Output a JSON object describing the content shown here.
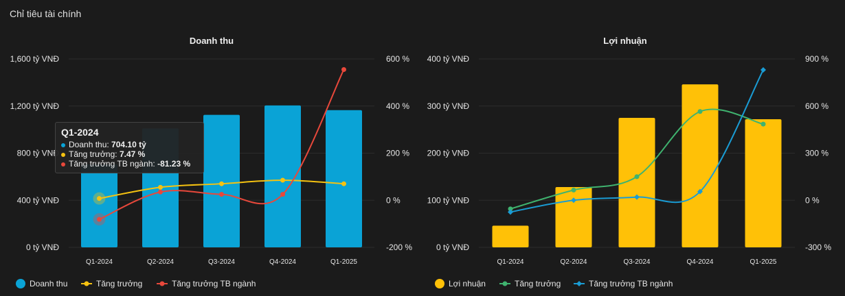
{
  "page_title": "Chỉ tiêu tài chính",
  "colors": {
    "revenue_bar": "#0aa3d6",
    "profit_bar": "#ffc107",
    "growth_revenue": "#f5c211",
    "industry_revenue": "#e8483b",
    "growth_profit": "#3fb36f",
    "industry_profit": "#1a9cd4"
  },
  "tooltip": {
    "title": "Q1-2024",
    "rows": [
      {
        "label": "Doanh thu: ",
        "value": "704.10 tỷ"
      },
      {
        "label": "Tăng trưởng: ",
        "value": "7.47 %"
      },
      {
        "label": "Tăng trưởng TB ngành: ",
        "value": "-81.23 %"
      }
    ]
  },
  "chart_data": [
    {
      "type": "bar",
      "title": "Doanh thu",
      "categories": [
        "Q1-2024",
        "Q2-2024",
        "Q3-2024",
        "Q4-2024",
        "Q1-2025"
      ],
      "y_left": {
        "ticks": [
          "0 tỷ VNĐ",
          "400 tỷ VNĐ",
          "800 tỷ VNĐ",
          "1,200 tỷ VNĐ",
          "1,600 tỷ VNĐ"
        ],
        "range": [
          0,
          1600
        ]
      },
      "y_right": {
        "ticks": [
          "-200 %",
          "0 %",
          "200 %",
          "400 %",
          "600 %"
        ],
        "range": [
          -200,
          600
        ]
      },
      "series": [
        {
          "name": "Doanh thu",
          "kind": "bar",
          "axis": "left",
          "values": [
            704.1,
            1010,
            1125,
            1205,
            1165
          ]
        },
        {
          "name": "Tăng trưởng",
          "kind": "line",
          "axis": "right",
          "values": [
            7.47,
            55,
            70,
            85,
            70
          ]
        },
        {
          "name": "Tăng trưởng TB ngành",
          "kind": "line",
          "axis": "right",
          "values": [
            -81.23,
            35,
            25,
            25,
            555
          ]
        }
      ]
    },
    {
      "type": "bar",
      "title": "Lợi nhuận",
      "categories": [
        "Q1-2024",
        "Q2-2024",
        "Q3-2024",
        "Q4-2024",
        "Q1-2025"
      ],
      "y_left": {
        "ticks": [
          "0 tỷ VNĐ",
          "100 tỷ VNĐ",
          "200 tỷ VNĐ",
          "300 tỷ VNĐ",
          "400 tỷ VNĐ"
        ],
        "range": [
          0,
          400
        ]
      },
      "y_right": {
        "ticks": [
          "-300 %",
          "0 %",
          "300 %",
          "600 %",
          "900 %"
        ],
        "range": [
          -300,
          900
        ]
      },
      "series": [
        {
          "name": "Lợi nhuận",
          "kind": "bar",
          "axis": "left",
          "values": [
            46,
            128,
            275,
            346,
            272
          ]
        },
        {
          "name": "Tăng trưởng",
          "kind": "line",
          "axis": "right",
          "values": [
            -55,
            65,
            150,
            565,
            485
          ]
        },
        {
          "name": "Tăng trưởng TB ngành",
          "kind": "line",
          "axis": "right",
          "values": [
            -75,
            0,
            20,
            55,
            830
          ]
        }
      ]
    }
  ]
}
